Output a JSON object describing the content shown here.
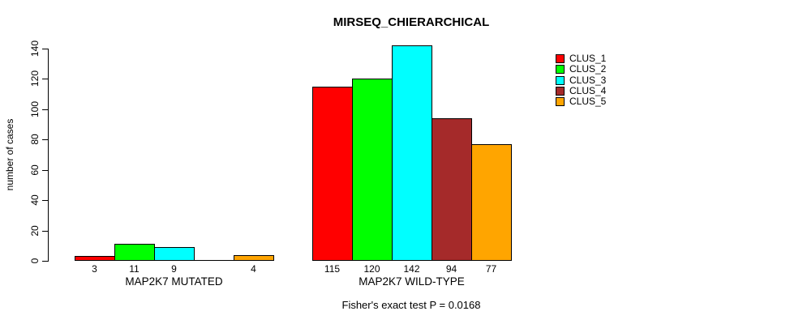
{
  "title": "MIRSEQ_CHIERARCHICAL",
  "footnote": "Fisher's exact test P = 0.0168",
  "chart_data": {
    "type": "bar",
    "title": "MIRSEQ_CHIERARCHICAL",
    "xlabel": "",
    "ylabel": "number of cases",
    "ylim": [
      0,
      140
    ],
    "y_ticks": [
      0,
      20,
      40,
      60,
      80,
      100,
      120,
      140
    ],
    "grid": false,
    "legend_position": "right",
    "categories": [
      "MAP2K7 MUTATED",
      "MAP2K7 WILD-TYPE"
    ],
    "series": [
      {
        "name": "CLUS_1",
        "color": "#FF0000",
        "values": [
          3,
          115
        ]
      },
      {
        "name": "CLUS_2",
        "color": "#00FF00",
        "values": [
          11,
          120
        ]
      },
      {
        "name": "CLUS_3",
        "color": "#00FFFF",
        "values": [
          9,
          142
        ]
      },
      {
        "name": "CLUS_4",
        "color": "#A52A2A",
        "values": [
          0,
          94
        ]
      },
      {
        "name": "CLUS_5",
        "color": "#FFA500",
        "values": [
          4,
          77
        ]
      }
    ],
    "bar_value_labels": [
      [
        "3",
        "11",
        "9",
        "",
        "4"
      ],
      [
        "115",
        "120",
        "142",
        "94",
        "77"
      ]
    ],
    "annotation": "Fisher's exact test P = 0.0168"
  }
}
